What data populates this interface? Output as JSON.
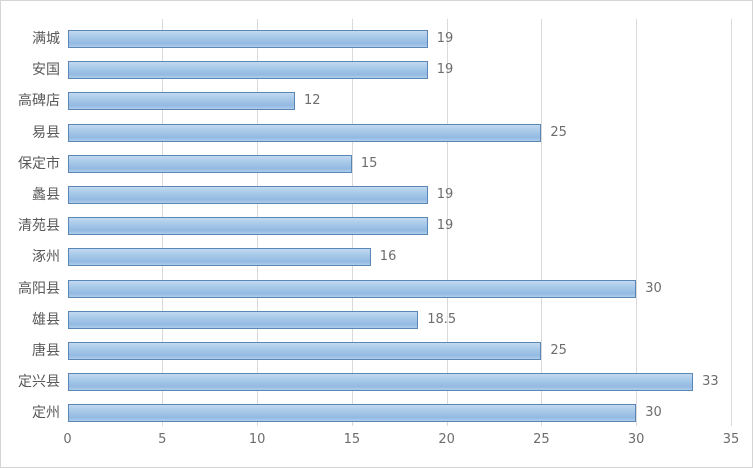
{
  "chart_data": {
    "type": "bar",
    "orientation": "horizontal",
    "title": "",
    "xlabel": "",
    "ylabel": "",
    "categories": [
      "满城",
      "安国",
      "高碑店",
      "易县",
      "保定市",
      "蠡县",
      "清苑县",
      "涿州",
      "高阳县",
      "雄县",
      "唐县",
      "定兴县",
      "定州"
    ],
    "values": [
      19,
      19,
      12,
      25,
      15,
      19,
      19,
      16,
      30,
      18.5,
      25,
      33,
      30
    ],
    "data_labels": [
      "19",
      "19",
      "12",
      "25",
      "15",
      "19",
      "19",
      "16",
      "30",
      "18.5",
      "25",
      "33",
      "30"
    ],
    "xlim": [
      0,
      35
    ],
    "x_ticks": [
      "0",
      "5",
      "10",
      "15",
      "20",
      "25",
      "30",
      "35"
    ],
    "grid": true,
    "legend": false,
    "colors": {
      "bar_fill": "#a6c8e9",
      "bar_border": "#5b87b7",
      "gridline": "#d9d9d9",
      "category_text": "#595959",
      "axis_text": "#6d6d6d",
      "chart_border": "#d4d4d4",
      "background": "#ffffff"
    }
  }
}
